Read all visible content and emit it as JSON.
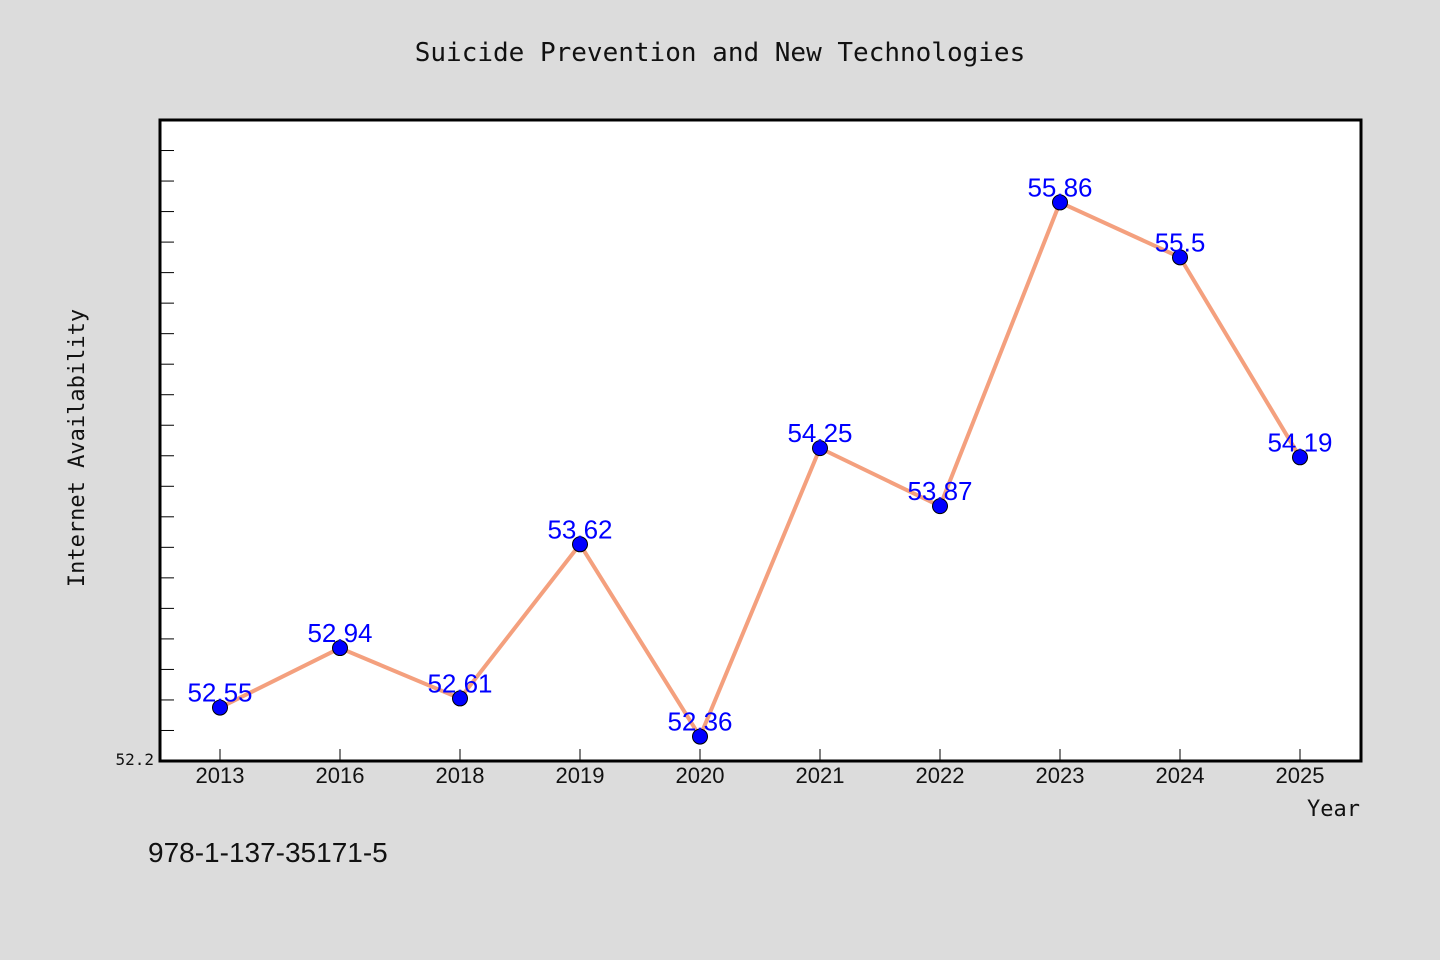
{
  "chart_data": {
    "type": "line",
    "title": "Suicide Prevention and New Technologies",
    "xlabel": "Year",
    "ylabel": "Internet Availability",
    "categories": [
      "2013",
      "2016",
      "2018",
      "2019",
      "2020",
      "2021",
      "2022",
      "2023",
      "2024",
      "2025"
    ],
    "series": [
      {
        "values": [
          52.55,
          52.94,
          52.61,
          53.62,
          52.36,
          54.25,
          53.87,
          55.86,
          55.5,
          54.19
        ]
      }
    ],
    "data_labels": [
      "52.55",
      "52.94",
      "52.61",
      "53.62",
      "52.36",
      "54.25",
      "53.87",
      "55.86",
      "55.5",
      "54.19"
    ],
    "ylim": [
      52.2,
      56.4
    ],
    "y_tick_label": "52.2",
    "grid": false,
    "legend": "none",
    "colors": {
      "line": "#f4a07e",
      "marker": "#0000ff",
      "label": "#0000ff",
      "plot_background": "#ffffff",
      "figure_background": "#dcdcdc"
    }
  },
  "footer": {
    "isbn": "978-1-137-35171-5"
  }
}
